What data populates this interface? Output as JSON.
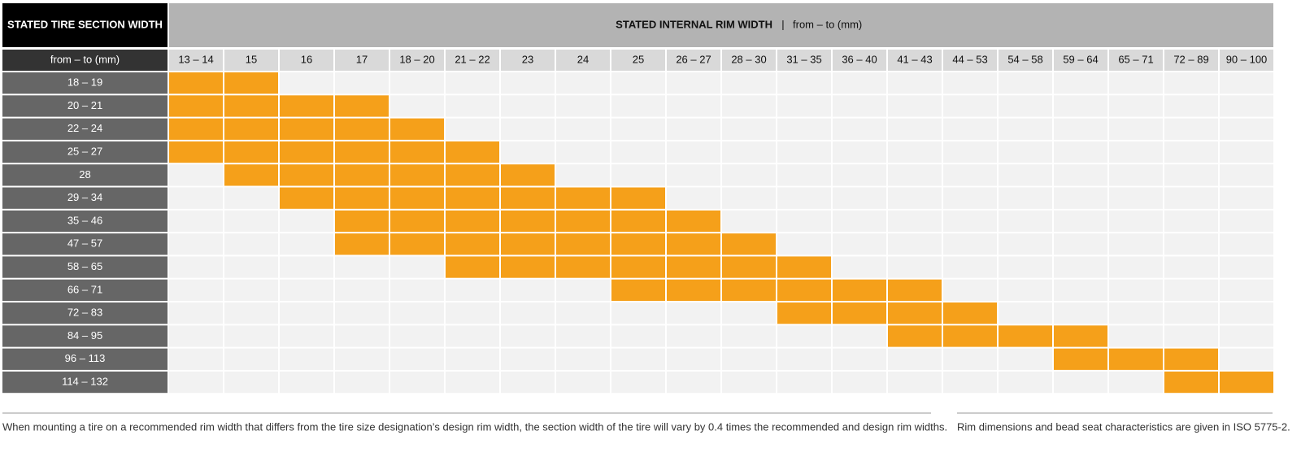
{
  "header": {
    "tire_width_title": "STATED TIRE SECTION WIDTH",
    "rim_width_title": "STATED INTERNAL RIM WIDTH",
    "separator": "|",
    "rim_width_unit": "from – to (mm)",
    "tire_width_unit": "from – to (mm)"
  },
  "table": {
    "columns": [
      "13 – 14",
      "15",
      "16",
      "17",
      "18 – 20",
      "21 – 22",
      "23",
      "24",
      "25",
      "26 – 27",
      "28 – 30",
      "31 – 35",
      "36 – 40",
      "41 – 43",
      "44 – 53",
      "54 – 58",
      "59 – 64",
      "65 – 71",
      "72 – 89",
      "90 – 100"
    ],
    "rows": [
      {
        "label": "18 – 19",
        "fits": [
          true,
          true,
          false,
          false,
          false,
          false,
          false,
          false,
          false,
          false,
          false,
          false,
          false,
          false,
          false,
          false,
          false,
          false,
          false,
          false
        ]
      },
      {
        "label": "20 – 21",
        "fits": [
          true,
          true,
          true,
          true,
          false,
          false,
          false,
          false,
          false,
          false,
          false,
          false,
          false,
          false,
          false,
          false,
          false,
          false,
          false,
          false
        ]
      },
      {
        "label": "22 – 24",
        "fits": [
          true,
          true,
          true,
          true,
          true,
          false,
          false,
          false,
          false,
          false,
          false,
          false,
          false,
          false,
          false,
          false,
          false,
          false,
          false,
          false
        ]
      },
      {
        "label": "25 – 27",
        "fits": [
          true,
          true,
          true,
          true,
          true,
          true,
          false,
          false,
          false,
          false,
          false,
          false,
          false,
          false,
          false,
          false,
          false,
          false,
          false,
          false
        ]
      },
      {
        "label": "28",
        "fits": [
          false,
          true,
          true,
          true,
          true,
          true,
          true,
          false,
          false,
          false,
          false,
          false,
          false,
          false,
          false,
          false,
          false,
          false,
          false,
          false
        ]
      },
      {
        "label": "29 – 34",
        "fits": [
          false,
          false,
          true,
          true,
          true,
          true,
          true,
          true,
          true,
          false,
          false,
          false,
          false,
          false,
          false,
          false,
          false,
          false,
          false,
          false
        ]
      },
      {
        "label": "35 – 46",
        "fits": [
          false,
          false,
          false,
          true,
          true,
          true,
          true,
          true,
          true,
          true,
          false,
          false,
          false,
          false,
          false,
          false,
          false,
          false,
          false,
          false
        ]
      },
      {
        "label": "47 – 57",
        "fits": [
          false,
          false,
          false,
          true,
          true,
          true,
          true,
          true,
          true,
          true,
          true,
          false,
          false,
          false,
          false,
          false,
          false,
          false,
          false,
          false
        ]
      },
      {
        "label": "58 – 65",
        "fits": [
          false,
          false,
          false,
          false,
          false,
          true,
          true,
          true,
          true,
          true,
          true,
          true,
          false,
          false,
          false,
          false,
          false,
          false,
          false,
          false
        ]
      },
      {
        "label": "66 – 71",
        "fits": [
          false,
          false,
          false,
          false,
          false,
          false,
          false,
          false,
          true,
          true,
          true,
          true,
          true,
          true,
          false,
          false,
          false,
          false,
          false,
          false
        ]
      },
      {
        "label": "72 – 83",
        "fits": [
          false,
          false,
          false,
          false,
          false,
          false,
          false,
          false,
          false,
          false,
          false,
          true,
          true,
          true,
          true,
          false,
          false,
          false,
          false,
          false
        ]
      },
      {
        "label": "84 – 95",
        "fits": [
          false,
          false,
          false,
          false,
          false,
          false,
          false,
          false,
          false,
          false,
          false,
          false,
          false,
          true,
          true,
          true,
          true,
          false,
          false,
          false
        ]
      },
      {
        "label": "96 – 113",
        "fits": [
          false,
          false,
          false,
          false,
          false,
          false,
          false,
          false,
          false,
          false,
          false,
          false,
          false,
          false,
          false,
          false,
          true,
          true,
          true,
          false
        ]
      },
      {
        "label": "114 – 132",
        "fits": [
          false,
          false,
          false,
          false,
          false,
          false,
          false,
          false,
          false,
          false,
          false,
          false,
          false,
          false,
          false,
          false,
          false,
          false,
          true,
          true
        ]
      }
    ]
  },
  "notes": [
    "When mounting a tire on a recommended rim width that differs from the tire size designation’s design rim width, the section width of the tire will vary by 0.4 times the recommended and design rim widths.",
    "Rim dimensions and bead seat characteristics are given in ISO 5775-2."
  ]
}
